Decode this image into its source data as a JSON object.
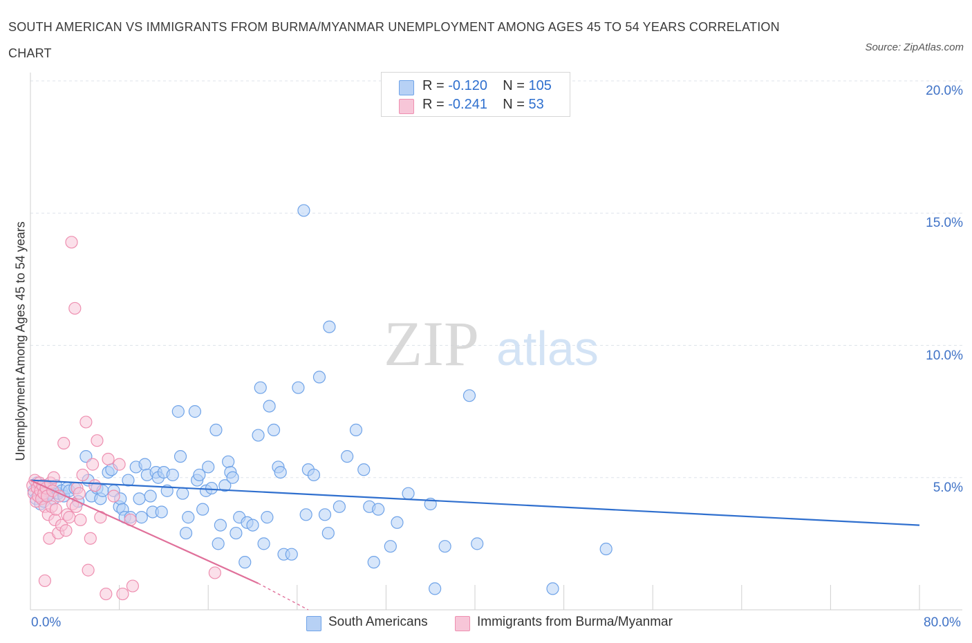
{
  "title": "SOUTH AMERICAN VS IMMIGRANTS FROM BURMA/MYANMAR UNEMPLOYMENT AMONG AGES 45 TO 54 YEARS CORRELATION CHART",
  "source": "Source: ZipAtlas.com",
  "watermark": {
    "zip": "ZIP",
    "atlas": "atlas"
  },
  "colors": {
    "blue": "#6fa3e8",
    "blue_fill": "#b7d1f5",
    "blue_line": "#2f6fce",
    "pink": "#ee8fb0",
    "pink_fill": "#f7c6d8",
    "pink_line": "#e0709a",
    "axis_label": "#3f72c6",
    "grid": "#dde3ea"
  },
  "legend": {
    "rows": [
      {
        "r_label": "R =",
        "r_value": "-0.120",
        "n_label": "N =",
        "n_value": "105"
      },
      {
        "r_label": "R =",
        "r_value": "-0.241",
        "n_label": "N =",
        "n_value": "53"
      }
    ]
  },
  "bottom_legend": {
    "series1": "South Americans",
    "series2": "Immigrants from Burma/Myanmar"
  },
  "chart_data": {
    "type": "scatter",
    "title": "SOUTH AMERICAN VS IMMIGRANTS FROM BURMA/MYANMAR UNEMPLOYMENT AMONG AGES 45 TO 54 YEARS CORRELATION CHART",
    "xlabel": "",
    "ylabel": "Unemployment Among Ages 45 to 54 years",
    "xlim": [
      0,
      80
    ],
    "ylim": [
      0,
      20
    ],
    "x_tick_labels": [
      "0.0%",
      "80.0%"
    ],
    "y_ticks": [
      5,
      10,
      15,
      20
    ],
    "y_tick_labels": [
      "5.0%",
      "10.0%",
      "15.0%",
      "20.0%"
    ],
    "series": [
      {
        "name": "South Americans",
        "R": -0.12,
        "N": 105,
        "trend": {
          "x": [
            0,
            80
          ],
          "y": [
            4.9,
            3.2
          ]
        },
        "points": [
          [
            0.3,
            4.5
          ],
          [
            0.5,
            4.2
          ],
          [
            0.6,
            4.8
          ],
          [
            0.8,
            4.4
          ],
          [
            0.9,
            4.0
          ],
          [
            1.0,
            4.6
          ],
          [
            1.1,
            4.3
          ],
          [
            1.2,
            4.1
          ],
          [
            1.3,
            4.7
          ],
          [
            1.4,
            4.5
          ],
          [
            1.5,
            4.3
          ],
          [
            1.6,
            4.6
          ],
          [
            1.8,
            4.4
          ],
          [
            2.0,
            4.5
          ],
          [
            2.1,
            4.2
          ],
          [
            2.3,
            4.7
          ],
          [
            2.5,
            4.4
          ],
          [
            2.8,
            4.5
          ],
          [
            3.0,
            4.3
          ],
          [
            3.3,
            4.6
          ],
          [
            3.5,
            4.5
          ],
          [
            4.0,
            4.6
          ],
          [
            4.3,
            4.1
          ],
          [
            5.0,
            5.8
          ],
          [
            5.2,
            4.9
          ],
          [
            5.5,
            4.3
          ],
          [
            6.0,
            4.6
          ],
          [
            6.3,
            4.2
          ],
          [
            6.5,
            4.5
          ],
          [
            7.0,
            5.2
          ],
          [
            7.3,
            5.3
          ],
          [
            7.5,
            4.5
          ],
          [
            8.0,
            3.9
          ],
          [
            8.1,
            4.2
          ],
          [
            8.3,
            3.8
          ],
          [
            8.5,
            3.5
          ],
          [
            8.8,
            4.9
          ],
          [
            9.0,
            3.5
          ],
          [
            9.5,
            5.4
          ],
          [
            9.8,
            4.2
          ],
          [
            10.0,
            3.5
          ],
          [
            10.3,
            5.5
          ],
          [
            10.5,
            5.1
          ],
          [
            10.8,
            4.3
          ],
          [
            11.0,
            3.7
          ],
          [
            11.3,
            5.2
          ],
          [
            11.5,
            5.0
          ],
          [
            11.8,
            3.7
          ],
          [
            12.0,
            5.2
          ],
          [
            12.3,
            4.5
          ],
          [
            12.8,
            5.1
          ],
          [
            13.3,
            7.5
          ],
          [
            13.5,
            5.8
          ],
          [
            13.7,
            4.4
          ],
          [
            14.0,
            2.9
          ],
          [
            14.2,
            3.5
          ],
          [
            14.8,
            7.5
          ],
          [
            15.0,
            4.9
          ],
          [
            15.2,
            5.1
          ],
          [
            15.5,
            3.8
          ],
          [
            15.8,
            4.5
          ],
          [
            16.0,
            5.4
          ],
          [
            16.3,
            4.6
          ],
          [
            16.7,
            6.8
          ],
          [
            16.9,
            2.5
          ],
          [
            17.1,
            3.2
          ],
          [
            17.5,
            4.7
          ],
          [
            17.8,
            5.6
          ],
          [
            18.0,
            5.2
          ],
          [
            18.2,
            5.0
          ],
          [
            18.5,
            2.9
          ],
          [
            18.8,
            3.5
          ],
          [
            19.3,
            1.8
          ],
          [
            19.5,
            3.3
          ],
          [
            20.0,
            3.2
          ],
          [
            20.5,
            6.6
          ],
          [
            20.7,
            8.4
          ],
          [
            21.0,
            2.5
          ],
          [
            21.3,
            3.5
          ],
          [
            21.5,
            7.7
          ],
          [
            21.9,
            6.8
          ],
          [
            22.3,
            5.4
          ],
          [
            22.5,
            5.2
          ],
          [
            22.8,
            2.1
          ],
          [
            23.5,
            2.1
          ],
          [
            24.1,
            8.4
          ],
          [
            24.6,
            15.1
          ],
          [
            24.8,
            3.6
          ],
          [
            25.0,
            5.3
          ],
          [
            25.5,
            5.1
          ],
          [
            26.0,
            8.8
          ],
          [
            26.5,
            3.6
          ],
          [
            26.8,
            2.9
          ],
          [
            26.9,
            10.7
          ],
          [
            27.8,
            3.9
          ],
          [
            28.5,
            5.8
          ],
          [
            29.3,
            6.8
          ],
          [
            30.0,
            5.3
          ],
          [
            30.5,
            3.9
          ],
          [
            30.9,
            1.8
          ],
          [
            31.3,
            3.8
          ],
          [
            32.4,
            2.4
          ],
          [
            33.0,
            3.3
          ],
          [
            34.0,
            4.4
          ],
          [
            36.0,
            4.0
          ],
          [
            36.4,
            0.8
          ],
          [
            37.3,
            2.4
          ],
          [
            39.5,
            8.1
          ],
          [
            40.2,
            2.5
          ],
          [
            51.8,
            2.3
          ],
          [
            47.0,
            0.8
          ]
        ]
      },
      {
        "name": "Immigrants from Burma/Myanmar",
        "R": -0.241,
        "N": 53,
        "trend": {
          "x": [
            0,
            20.5
          ],
          "y": [
            4.9,
            1.0
          ]
        },
        "trend_dashed": {
          "x": [
            20.5,
            25
          ],
          "y": [
            1.0,
            0.0
          ]
        },
        "points": [
          [
            0.2,
            4.7
          ],
          [
            0.3,
            4.4
          ],
          [
            0.4,
            4.9
          ],
          [
            0.5,
            4.1
          ],
          [
            0.6,
            4.6
          ],
          [
            0.7,
            4.3
          ],
          [
            0.8,
            4.8
          ],
          [
            0.9,
            4.5
          ],
          [
            1.0,
            4.2
          ],
          [
            1.1,
            4.7
          ],
          [
            1.2,
            4.4
          ],
          [
            1.3,
            3.9
          ],
          [
            1.4,
            4.6
          ],
          [
            1.5,
            4.3
          ],
          [
            1.6,
            3.6
          ],
          [
            1.7,
            2.7
          ],
          [
            1.8,
            4.8
          ],
          [
            1.9,
            3.9
          ],
          [
            2.0,
            4.5
          ],
          [
            2.2,
            3.4
          ],
          [
            2.3,
            3.8
          ],
          [
            2.5,
            2.9
          ],
          [
            2.6,
            4.3
          ],
          [
            2.8,
            3.2
          ],
          [
            3.0,
            6.3
          ],
          [
            3.2,
            3.0
          ],
          [
            3.3,
            3.6
          ],
          [
            3.5,
            3.5
          ],
          [
            3.7,
            13.9
          ],
          [
            3.8,
            4.0
          ],
          [
            4.0,
            11.4
          ],
          [
            4.1,
            3.9
          ],
          [
            4.2,
            4.6
          ],
          [
            4.5,
            3.4
          ],
          [
            4.7,
            5.1
          ],
          [
            5.0,
            7.1
          ],
          [
            5.2,
            1.5
          ],
          [
            5.4,
            2.7
          ],
          [
            5.6,
            5.5
          ],
          [
            5.8,
            4.7
          ],
          [
            6.0,
            6.4
          ],
          [
            6.3,
            3.5
          ],
          [
            6.8,
            0.6
          ],
          [
            7.0,
            5.7
          ],
          [
            7.5,
            4.3
          ],
          [
            8.0,
            5.5
          ],
          [
            8.3,
            0.6
          ],
          [
            9.0,
            3.4
          ],
          [
            9.2,
            0.9
          ],
          [
            1.3,
            1.1
          ],
          [
            16.6,
            1.4
          ],
          [
            2.1,
            5.0
          ],
          [
            4.4,
            4.4
          ]
        ]
      }
    ]
  }
}
